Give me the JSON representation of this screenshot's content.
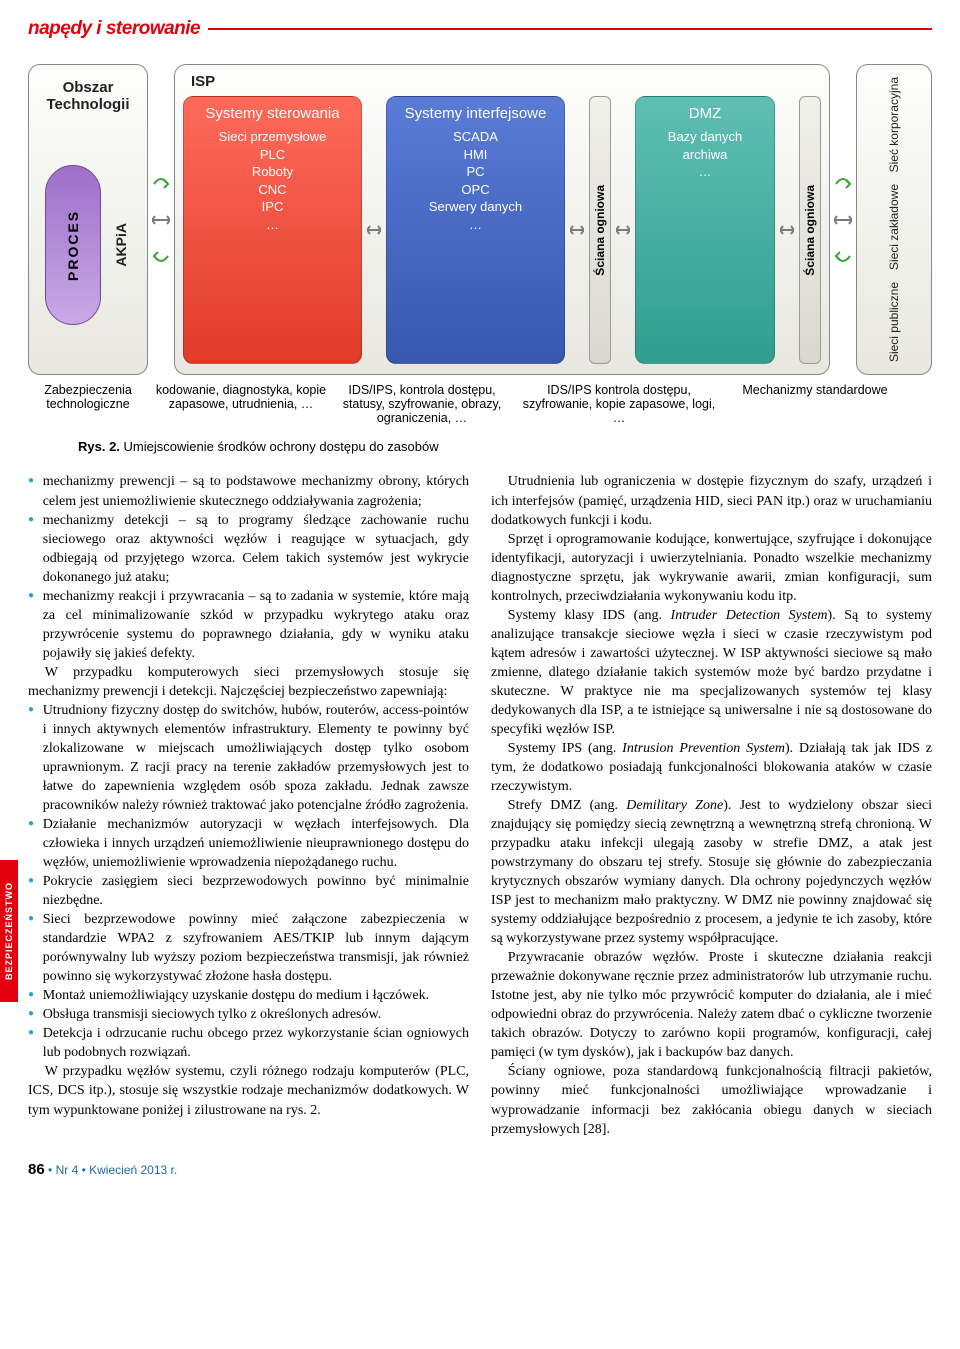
{
  "header": {
    "section_title": "napędy i sterowanie"
  },
  "side_tab": "BEZPIECZEŃSTWO",
  "diagram": {
    "background": "#ffffff",
    "block_border": "#888888",
    "block_bg_top": "#fdfdfc",
    "block_bg_bottom": "#e8e8e0",
    "colors": {
      "red": "#e13b2a",
      "blue": "#3757b0",
      "teal": "#2f9e90",
      "purple": "#9e6fc9",
      "arrow_gray": "#7a7a7a",
      "arrow_green": "#3aa537"
    },
    "obszar_technologii": {
      "title": "Obszar Technologii",
      "proces": "PROCES",
      "akpia": "AKPiA"
    },
    "isp": {
      "title": "ISP",
      "card_red": {
        "title": "Systemy sterowania",
        "lines": "Sieci przemysłowe\nPLC\nRoboty\nCNC\nIPC\n…"
      },
      "card_blue": {
        "title": "Systemy interfejsowe",
        "lines": "SCADA\nHMI\nPC\nOPC\nSerwery danych\n…"
      },
      "firewall1": "Ściana ogniowa",
      "card_teal": {
        "title": "DMZ",
        "lines": "Bazy danych archiwa\n…"
      },
      "firewall2": "Ściana ogniowa"
    },
    "right": {
      "l1": "Sieć korporacyjna",
      "l2": "Sieci zakładowe",
      "l3": "Sieci publiczne"
    },
    "captions": {
      "c1": "Zabezpieczenia technologiczne",
      "c2": "kodowanie, diagnostyka, kopie zapasowe, utrudnienia, …",
      "c3": "IDS/IPS, kontrola dostępu, statusy, szyfrowanie, obrazy, ograniczenia, …",
      "c4": "IDS/IPS kontrola dostępu, szyfrowanie, kopie zapasowe, logi, …",
      "c5": "Mechanizmy standardowe"
    },
    "caption_widths": [
      120,
      174,
      176,
      206,
      174
    ],
    "figure_label": "Rys. 2.",
    "figure_text": "Umiejscowienie środków ochrony dostępu do zasobów"
  },
  "body_left": {
    "b1": "mechanizmy prewencji – są to podstawowe mechanizmy obrony, których celem jest uniemożliwienie skutecznego oddziaływania zagrożenia;",
    "b2": "mechanizmy detekcji – są to programy śledzące zachowanie ruchu sieciowego oraz aktywności węzłów i reagujące w sytuacjach, gdy odbiegają od przyjętego wzorca. Celem takich systemów jest wykrycie dokonanego już ataku;",
    "b3": "mechanizmy reakcji i przywracania – są to zadania w systemie, które mają za cel minimalizowanie szkód w przypadku wykrytego ataku oraz przywrócenie systemu do poprawnego działania, gdy w wyniku ataku pojawiły się jakieś defekty.",
    "p1": "W przypadku komputerowych sieci przemysłowych stosuje się mechanizmy prewencji i detekcji. Najczęściej bezpieczeństwo zapewniają:",
    "b4": "Utrudniony fizyczny dostęp do switchów, hubów, routerów, access-pointów i innych aktywnych elementów infrastruktury. Elementy te powinny być zlokalizowane w miejscach umożliwiających dostęp tylko osobom uprawnionym. Z racji pracy na terenie zakładów przemysłowych jest to łatwe do zapewnienia względem osób spoza zakładu. Jednak zawsze pracowników należy również traktować jako potencjalne źródło zagrożenia.",
    "b5": "Działanie mechanizmów autoryzacji w węzłach interfejsowych. Dla człowieka i innych urządzeń uniemożliwienie nieuprawnionego dostępu do węzłów, uniemożliwienie wprowadzenia niepożądanego ruchu.",
    "b6": "Pokrycie zasięgiem sieci bezprzewodowych powinno być minimalnie niezbędne.",
    "b7": "Sieci bezprzewodowe powinny mieć załączone zabezpieczenia w standardzie WPA2 z szyfrowaniem AES/TKIP lub innym dającym porównywalny lub wyższy poziom bezpieczeństwa transmisji, jak również powinno się wykorzystywać złożone hasła dostępu.",
    "b8": "Montaż uniemożliwiający uzyskanie dostępu do medium i łączówek.",
    "b9": "Obsługa transmisji sieciowych tylko z określonych adresów.",
    "b10": "Detekcja i odrzucanie ruchu obcego przez wykorzystanie ścian ogniowych lub podobnych rozwiązań.",
    "p2": "W przypadku węzłów systemu, czyli różnego rodzaju komputerów (PLC, ICS, DCS itp.), stosuje się wszystkie rodzaje mechanizmów dodatkowych. W tym wypunktowane poniżej i zilustrowane na rys. 2."
  },
  "body_right": {
    "p1a": "Utrudnienia lub ograniczenia w dostępie fizycznym do szafy, urządzeń i ich interfejsów (pamięć, urządzenia HID, sieci PAN itp.) oraz w uruchamianiu dodatkowych funkcji i kodu.",
    "p1b": "Sprzęt i oprogramowanie kodujące, konwertujące, szyfrujące i dokonujące identyfikacji, autoryzacji i uwierzytelniania. Ponadto wszelkie mechanizmy diagnostyczne sprzętu, jak wykrywanie awarii, zmian konfiguracji, sum kontrolnych, przeciwdziałania wykonywaniu kodu itp.",
    "p2_pre": "Systemy klasy IDS (ang. ",
    "p2_em": "Intruder Detection System",
    "p2_post": "). Są to systemy analizujące transakcje sieciowe węzła i sieci w czasie rzeczywistym pod kątem adresów i zawartości użytecznej. W ISP aktywności sieciowe są mało zmienne, dlatego działanie takich systemów może być bardzo przydatne i skuteczne. W praktyce nie ma specjalizowanych systemów tej klasy dedykowanych dla ISP, a te istniejące są uniwersalne i nie są dostosowane do specyfiki węzłów ISP.",
    "p3_pre": "Systemy IPS (ang. ",
    "p3_em": "Intrusion Prevention System",
    "p3_post": "). Działają tak jak IDS z tym, że dodatkowo posiadają funkcjonalności blokowania ataków w czasie rzeczywistym.",
    "p4_pre": "Strefy DMZ (ang. ",
    "p4_em": "Demilitary Zone",
    "p4_post": "). Jest to wydzielony obszar sieci znajdujący się pomiędzy siecią zewnętrzną a wewnętrzną strefą chronioną. W przypadku ataku infekcji ulegają zasoby w strefie DMZ, a atak jest powstrzymany do obszaru tej strefy. Stosuje się głównie do zabezpieczania krytycznych obszarów wymiany danych. Dla ochrony pojedynczych węzłów ISP jest to mechanizm mało praktyczny. W DMZ nie powinny znajdować się systemy oddziałujące bezpośrednio z procesem, a jedynie te ich zasoby, które są wykorzystywane przez systemy współpracujące.",
    "p5": "Przywracanie obrazów węzłów. Proste i skuteczne działania reakcji przeważnie dokonywane ręcznie przez administratorów lub utrzymanie ruchu. Istotne jest, aby nie tylko móc przywrócić komputer do działania, ale i mieć odpowiedni obraz do przywrócenia. Należy zatem dbać o cykliczne tworzenie takich obrazów. Dotyczy to zarówno kopii programów, konfiguracji, całej pamięci (w tym dysków), jak i backupów baz danych.",
    "p6": "Ściany ogniowe, poza standardową funkcjonalnością filtracji pakietów, powinny mieć funkcjonalności umożliwiające wprowadzanie i wyprowadzanie informacji bez zakłócania obiegu danych w sieciach przemysłowych [28]."
  },
  "footer": {
    "page": "86",
    "sep": "•",
    "issue": "Nr 4",
    "date": "Kwiecień 2013 r."
  }
}
